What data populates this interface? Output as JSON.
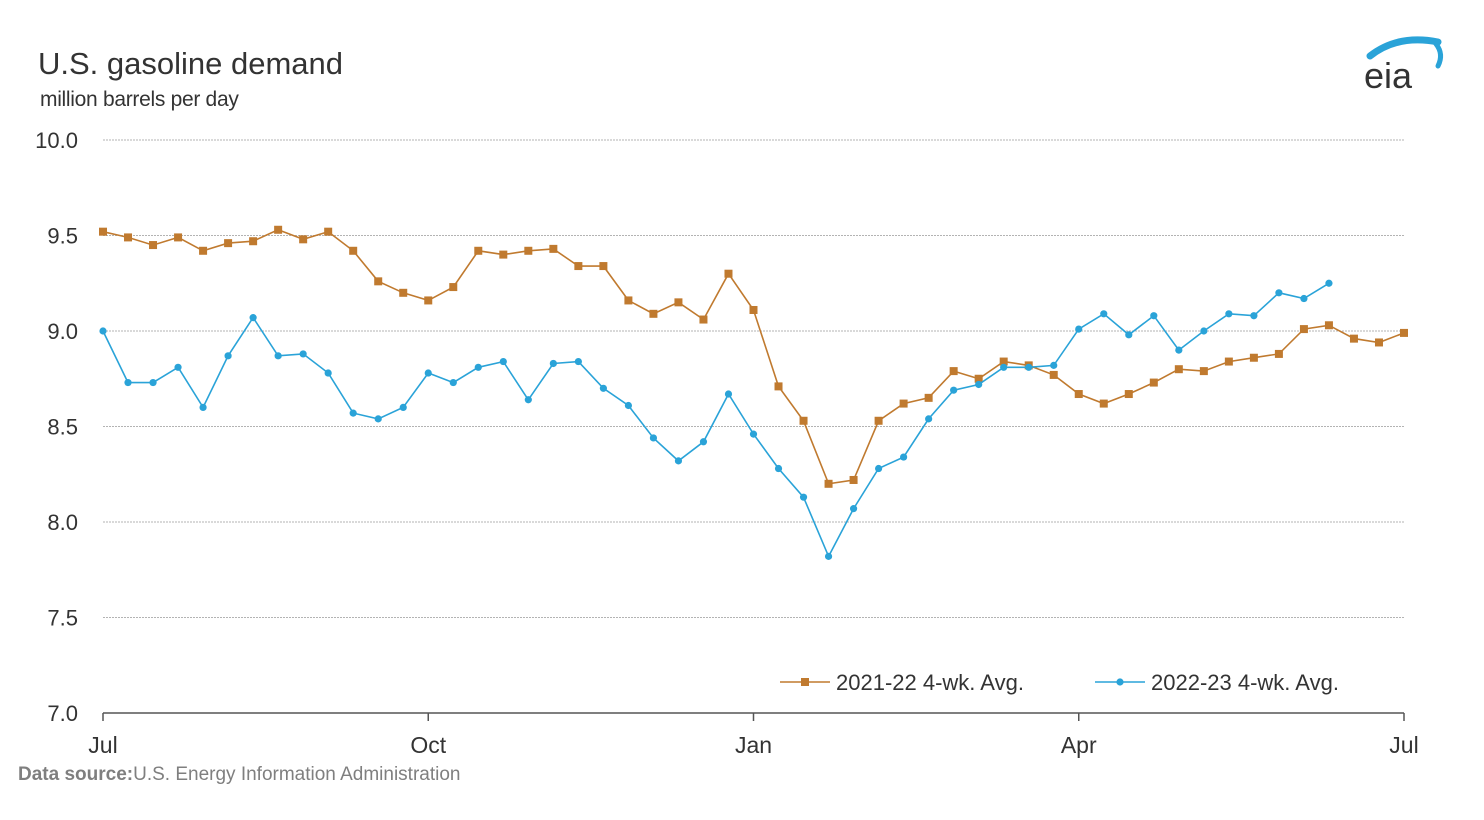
{
  "colors": {
    "series_2021_22": "#c07a2f",
    "series_2022_23": "#2aa3d8",
    "grid": "#b3b3b3",
    "text": "#333333",
    "source_text": "#7f7f7f"
  },
  "logo": {
    "text": "eia"
  },
  "source": {
    "label": "Data source:",
    "text": "U.S. Energy Information Administration"
  },
  "chart_data": {
    "type": "line",
    "title": "U.S. gasoline demand",
    "subtitle": "million barrels per day",
    "ylim": [
      7.0,
      10.0
    ],
    "yticks": [
      "7.0",
      "7.5",
      "8.0",
      "8.5",
      "9.0",
      "9.5",
      "10.0"
    ],
    "ytick_values": [
      7.0,
      7.5,
      8.0,
      8.5,
      9.0,
      9.5,
      10.0
    ],
    "xtick_labels": [
      "Jul",
      "Oct",
      "Jan",
      "Apr",
      "Jul"
    ],
    "xtick_weeks": [
      0,
      13,
      26,
      39,
      52
    ],
    "xlim_weeks": [
      0,
      52
    ],
    "grid": true,
    "legend_position": "bottom-right",
    "series": [
      {
        "name": "2021-22  4-wk. Avg.",
        "marker": "square",
        "color": "#c07a2f",
        "values": [
          9.52,
          9.49,
          9.45,
          9.49,
          9.42,
          9.46,
          9.47,
          9.53,
          9.48,
          9.52,
          9.42,
          9.26,
          9.2,
          9.16,
          9.23,
          9.42,
          9.4,
          9.42,
          9.43,
          9.34,
          9.34,
          9.16,
          9.09,
          9.15,
          9.06,
          9.3,
          9.11,
          8.71,
          8.53,
          8.2,
          8.22,
          8.53,
          8.62,
          8.65,
          8.79,
          8.75,
          8.84,
          8.82,
          8.77,
          8.67,
          8.62,
          8.67,
          8.73,
          8.8,
          8.79,
          8.84,
          8.86,
          8.88,
          9.01,
          9.03,
          8.96,
          8.94,
          8.99
        ]
      },
      {
        "name": "2022-23  4-wk. Avg.",
        "marker": "circle",
        "color": "#2aa3d8",
        "values": [
          9.0,
          8.73,
          8.73,
          8.81,
          8.6,
          8.87,
          9.07,
          8.87,
          8.88,
          8.78,
          8.57,
          8.54,
          8.6,
          8.78,
          8.73,
          8.81,
          8.84,
          8.64,
          8.83,
          8.84,
          8.7,
          8.61,
          8.44,
          8.32,
          8.42,
          8.67,
          8.46,
          8.28,
          8.13,
          7.82,
          8.07,
          8.28,
          8.34,
          8.54,
          8.69,
          8.72,
          8.81,
          8.81,
          8.82,
          9.01,
          9.09,
          8.98,
          9.08,
          8.9,
          9.0,
          9.09,
          9.08,
          9.2,
          9.17,
          9.25
        ]
      }
    ]
  }
}
